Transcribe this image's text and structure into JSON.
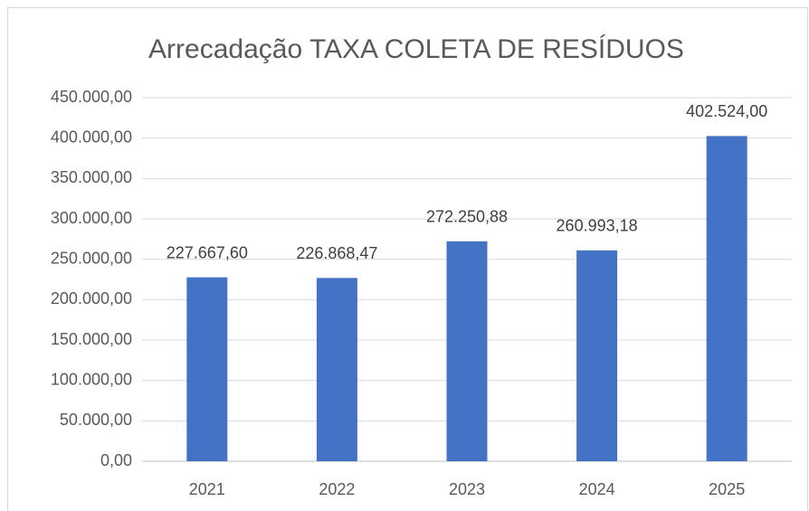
{
  "chart_data": {
    "type": "bar",
    "title": "Arrecadação TAXA COLETA DE RESÍDUOS",
    "categories": [
      "2021",
      "2022",
      "2023",
      "2024",
      "2025"
    ],
    "values": [
      227667.6,
      226868.47,
      272250.88,
      260993.18,
      402524.0
    ],
    "value_labels": [
      "227.667,60",
      "226.868,47",
      "272.250,88",
      "260.993,18",
      "402.524,00"
    ],
    "color": "#4472c4",
    "ylim": [
      0,
      450000
    ],
    "yticks": [
      {
        "value": 0,
        "label": "0,00"
      },
      {
        "value": 50000,
        "label": "50.000,00"
      },
      {
        "value": 100000,
        "label": "100.000,00"
      },
      {
        "value": 150000,
        "label": "150.000,00"
      },
      {
        "value": 200000,
        "label": "200.000,00"
      },
      {
        "value": 250000,
        "label": "250.000,00"
      },
      {
        "value": 300000,
        "label": "300.000,00"
      },
      {
        "value": 350000,
        "label": "350.000,00"
      },
      {
        "value": 400000,
        "label": "400.000,00"
      },
      {
        "value": 450000,
        "label": "450.000,00"
      }
    ],
    "grid": true
  }
}
